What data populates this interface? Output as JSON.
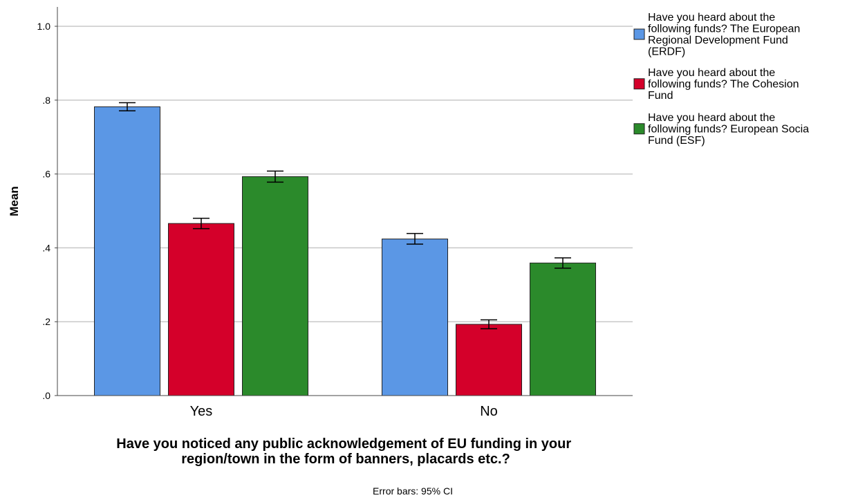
{
  "chart_data": {
    "type": "bar",
    "categories": [
      "Yes",
      "No"
    ],
    "series": [
      {
        "name": "Have you heard about the following funds? The European Regional Development Fund (ERDF)",
        "name_lines": [
          "Have you heard about the",
          "following funds? The European",
          "Regional Development Fund",
          "(ERDF)"
        ],
        "color": "#5b97e5",
        "values": [
          0.782,
          0.424
        ],
        "ci_low": [
          0.771,
          0.41
        ],
        "ci_high": [
          0.793,
          0.439
        ]
      },
      {
        "name": "Have you heard about the following funds? The Cohesion Fund",
        "name_lines": [
          "Have you heard about the",
          "following funds? The Cohesion",
          "Fund"
        ],
        "color": "#d4002a",
        "values": [
          0.466,
          0.193
        ],
        "ci_low": [
          0.452,
          0.181
        ],
        "ci_high": [
          0.48,
          0.205
        ]
      },
      {
        "name": "Have you heard about the following funds? European Socia Fund (ESF)",
        "name_lines": [
          "Have you heard about the",
          "following funds? European Socia",
          "Fund (ESF)"
        ],
        "color": "#2b8a2b",
        "values": [
          0.593,
          0.359
        ],
        "ci_low": [
          0.578,
          0.345
        ],
        "ci_high": [
          0.608,
          0.373
        ]
      }
    ],
    "ylabel": "Mean",
    "xlabel_lines": [
      "Have you noticed any public acknowledgement of EU funding in your",
      "region/town in the form of banners, placards etc.?"
    ],
    "ylim": [
      0,
      1.0
    ],
    "yticks": [
      0,
      0.2,
      0.4,
      0.6,
      0.8,
      1.0
    ],
    "ytick_labels": [
      ".0",
      ".2",
      ".4",
      ".6",
      ".8",
      "1.0"
    ],
    "grid": true,
    "legend_position": "right",
    "note": "Error bars: 95% CI"
  }
}
